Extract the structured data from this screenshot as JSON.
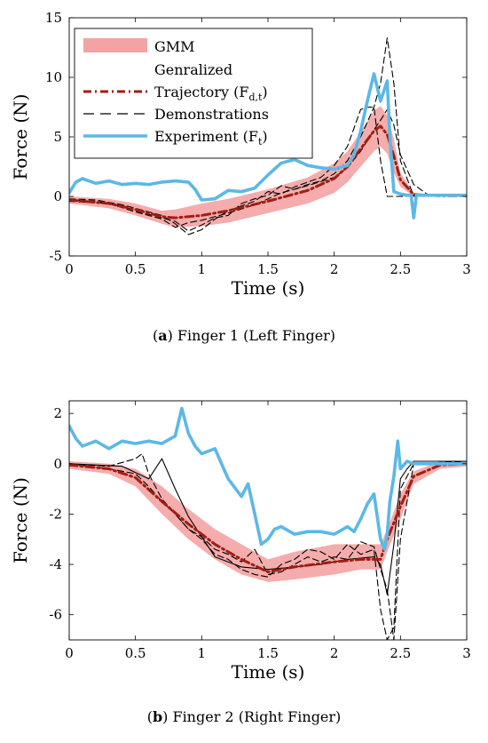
{
  "figure": {
    "captions": [
      {
        "label": "(",
        "letter": "a",
        "close": ")",
        "text": " Finger 1 (Left Finger)"
      },
      {
        "label": "(",
        "letter": "b",
        "close": ")",
        "text": " Finger 2 (Right Finger)"
      }
    ]
  },
  "colors": {
    "gmm": "#f4a3a3",
    "generalized": "#a01e12",
    "demonstrations": "#000000",
    "experiment": "#5cb8e6"
  },
  "chart_data": [
    {
      "type": "line",
      "title": "",
      "xlabel": "Time (s)",
      "ylabel": "Force (N)",
      "xlim": [
        0,
        3
      ],
      "ylim": [
        -5,
        15
      ],
      "xticks": [
        0,
        0.5,
        1,
        1.5,
        2,
        2.5,
        3
      ],
      "xtick_labels": [
        "0",
        "0.5",
        "1",
        "1.5",
        "2",
        "2.5",
        "3"
      ],
      "yticks": [
        -5,
        0,
        5,
        10,
        15
      ],
      "ytick_labels": [
        "-5",
        "0",
        "5",
        "10",
        "15"
      ],
      "grid": false,
      "legend": {
        "placement": "top-left",
        "entries": [
          {
            "series": "gmm",
            "lines": [
              "GMM"
            ]
          },
          {
            "series": "generalized",
            "lines": [
              "Genralized",
              "Trajectory (F",
              "d,t",
              ")"
            ]
          },
          {
            "series": "demonstrations",
            "lines": [
              "Demonstrations"
            ]
          },
          {
            "series": "experiment",
            "lines": [
              "Experiment (F",
              "t",
              ")"
            ]
          }
        ]
      },
      "series": [
        {
          "id": "gmm",
          "name": "GMM",
          "style": "band",
          "x": [
            0,
            0.3,
            0.5,
            0.7,
            0.8,
            1.0,
            1.2,
            1.5,
            1.8,
            2.0,
            2.1,
            2.2,
            2.3,
            2.35,
            2.4,
            2.45,
            2.5,
            2.6,
            2.8,
            3.0
          ],
          "lower": [
            -0.6,
            -1.0,
            -1.6,
            -2.3,
            -2.6,
            -2.5,
            -2.2,
            -1.4,
            -0.6,
            0.3,
            1.2,
            2.5,
            3.8,
            4.2,
            3.6,
            2.0,
            0.8,
            0.0,
            0.0,
            0.0
          ],
          "upper": [
            0.0,
            -0.2,
            -0.6,
            -1.2,
            -1.1,
            -0.6,
            -0.2,
            0.6,
            1.6,
            2.8,
            3.8,
            5.4,
            7.2,
            7.6,
            6.8,
            4.8,
            2.0,
            0.3,
            0.1,
            0.1
          ]
        },
        {
          "id": "generalized",
          "name": "Genralized Trajectory (Fd,t)",
          "style": "dashdot",
          "x": [
            0,
            0.3,
            0.5,
            0.7,
            0.8,
            1.0,
            1.2,
            1.5,
            1.8,
            2.0,
            2.1,
            2.2,
            2.3,
            2.35,
            2.4,
            2.45,
            2.5,
            2.6,
            2.8,
            3.0
          ],
          "y": [
            -0.3,
            -0.6,
            -1.1,
            -1.7,
            -1.8,
            -1.6,
            -1.2,
            -0.4,
            0.5,
            1.5,
            2.5,
            4.0,
            5.5,
            5.9,
            5.2,
            3.4,
            1.4,
            0.15,
            0.05,
            0.05
          ]
        },
        {
          "id": "demo1",
          "name": "Demonstrations",
          "style": "dashed",
          "x": [
            0,
            0.2,
            0.4,
            0.5,
            0.6,
            0.7,
            0.8,
            0.9,
            1.0,
            1.1,
            1.2,
            1.3,
            1.4,
            1.5,
            1.6,
            1.7,
            1.8,
            1.9,
            2.0,
            2.1,
            2.2,
            2.3,
            2.35,
            2.4,
            2.45,
            2.5,
            2.6,
            2.7,
            2.8,
            3.0
          ],
          "y": [
            -0.3,
            -0.4,
            -0.8,
            -1.2,
            -1.5,
            -1.8,
            -2.1,
            -2.9,
            -2.4,
            -1.8,
            -1.6,
            -0.6,
            -0.2,
            0.1,
            0.9,
            0.6,
            1.0,
            1.3,
            1.9,
            3.0,
            5.0,
            7.5,
            9.5,
            13.3,
            9.5,
            3.0,
            0.0,
            0.0,
            0.0,
            0.0
          ]
        },
        {
          "id": "demo2",
          "name": "",
          "style": "dashed",
          "x": [
            0,
            0.2,
            0.4,
            0.5,
            0.6,
            0.7,
            0.8,
            0.9,
            1.0,
            1.1,
            1.2,
            1.3,
            1.4,
            1.5,
            1.6,
            1.7,
            1.8,
            1.9,
            2.0,
            2.1,
            2.2,
            2.25,
            2.3,
            2.35,
            2.4,
            2.5,
            2.6,
            3.0
          ],
          "y": [
            -0.2,
            -0.3,
            -0.7,
            -1.0,
            -1.3,
            -1.6,
            -2.3,
            -3.2,
            -2.8,
            -1.9,
            -1.2,
            -0.8,
            -0.4,
            0.4,
            0.2,
            0.8,
            1.2,
            1.6,
            2.6,
            4.2,
            7.3,
            7.5,
            7.5,
            3.0,
            0.0,
            0.0,
            0.0,
            0.0
          ]
        },
        {
          "id": "demo3",
          "name": "",
          "style": "dashed",
          "x": [
            0,
            0.3,
            0.5,
            0.7,
            0.8,
            0.9,
            1.0,
            1.2,
            1.4,
            1.6,
            1.8,
            2.0,
            2.1,
            2.2,
            2.3,
            2.35,
            2.4,
            2.45,
            2.5,
            2.6,
            2.7,
            2.8,
            3.0
          ],
          "y": [
            -0.4,
            -0.6,
            -1.3,
            -1.9,
            -2.6,
            -2.2,
            -2.0,
            -1.4,
            -0.7,
            0.3,
            0.9,
            1.6,
            2.4,
            3.8,
            5.6,
            6.4,
            7.3,
            6.0,
            3.5,
            1.0,
            0.2,
            0.0,
            0.0
          ]
        },
        {
          "id": "experiment",
          "name": "Experiment (Ft)",
          "style": "solid",
          "x": [
            0,
            0.05,
            0.1,
            0.2,
            0.3,
            0.4,
            0.5,
            0.6,
            0.7,
            0.8,
            0.9,
            0.95,
            1.0,
            1.1,
            1.2,
            1.3,
            1.4,
            1.5,
            1.6,
            1.7,
            1.8,
            1.9,
            2.0,
            2.1,
            2.15,
            2.2,
            2.25,
            2.3,
            2.35,
            2.4,
            2.42,
            2.45,
            2.5,
            2.55,
            2.58,
            2.6,
            2.62,
            2.7,
            3.0
          ],
          "y": [
            0.3,
            1.2,
            1.5,
            1.1,
            1.3,
            1.0,
            1.1,
            1.0,
            1.2,
            1.3,
            1.2,
            0.6,
            -0.3,
            -0.2,
            0.5,
            0.4,
            0.7,
            1.8,
            2.8,
            3.1,
            2.6,
            2.4,
            2.3,
            2.6,
            3.5,
            5.5,
            8.0,
            10.3,
            8.0,
            9.7,
            5.0,
            0.4,
            0.2,
            0.1,
            0.1,
            -1.8,
            0.1,
            0.1,
            0.1
          ]
        }
      ]
    },
    {
      "type": "line",
      "title": "",
      "xlabel": "Time (s)",
      "ylabel": "Force (N)",
      "xlim": [
        0,
        3
      ],
      "ylim": [
        -7,
        2.5
      ],
      "xticks": [
        0,
        0.5,
        1,
        1.5,
        2,
        2.5,
        3
      ],
      "xtick_labels": [
        "0",
        "0.5",
        "1",
        "1.5",
        "2",
        "2.5",
        "3"
      ],
      "yticks": [
        -6,
        -4,
        -2,
        0,
        2
      ],
      "ytick_labels": [
        "-6",
        "-4",
        "-2",
        "0",
        "2"
      ],
      "grid": false,
      "series": [
        {
          "id": "gmm",
          "name": "GMM",
          "style": "band",
          "x": [
            0,
            0.3,
            0.5,
            0.7,
            0.9,
            1.1,
            1.3,
            1.5,
            1.7,
            2.0,
            2.2,
            2.35,
            2.4,
            2.5,
            2.6,
            2.8,
            3.0
          ],
          "lower": [
            -0.2,
            -0.4,
            -0.9,
            -2.0,
            -3.0,
            -3.8,
            -4.4,
            -4.7,
            -4.6,
            -4.4,
            -4.2,
            -4.2,
            -3.5,
            -2.2,
            -0.8,
            -0.2,
            -0.1
          ],
          "upper": [
            0.1,
            0.0,
            -0.2,
            -0.9,
            -1.8,
            -2.6,
            -3.2,
            -3.8,
            -3.5,
            -3.2,
            -3.2,
            -3.2,
            -2.6,
            -1.2,
            -0.3,
            0.1,
            0.1
          ]
        },
        {
          "id": "generalized",
          "name": "Genralized Trajectory (Fd,t)",
          "style": "dashdot",
          "x": [
            0,
            0.3,
            0.5,
            0.7,
            0.9,
            1.1,
            1.3,
            1.5,
            1.7,
            2.0,
            2.2,
            2.35,
            2.4,
            2.5,
            2.6,
            2.8,
            3.0
          ],
          "y": [
            -0.05,
            -0.2,
            -0.55,
            -1.5,
            -2.4,
            -3.2,
            -3.8,
            -4.3,
            -4.1,
            -3.9,
            -3.8,
            -3.8,
            -3.0,
            -1.7,
            -0.5,
            -0.05,
            0.0
          ]
        },
        {
          "id": "demo1",
          "name": "",
          "style": "dashed",
          "x": [
            0,
            0.3,
            0.5,
            0.55,
            0.6,
            0.7,
            0.8,
            0.9,
            1.0,
            1.1,
            1.2,
            1.3,
            1.4,
            1.5,
            1.6,
            1.7,
            1.8,
            1.9,
            2.0,
            2.1,
            2.2,
            2.3,
            2.35,
            2.4,
            2.45,
            2.5,
            2.6,
            3.0
          ],
          "y": [
            0.0,
            -0.1,
            0.2,
            0.4,
            -0.4,
            -1.4,
            -2.0,
            -2.6,
            -3.0,
            -3.6,
            -3.8,
            -4.2,
            -4.4,
            -4.5,
            -4.0,
            -3.8,
            -3.4,
            -3.5,
            -3.8,
            -3.2,
            -3.6,
            -3.4,
            -5.8,
            -7.0,
            -6.5,
            -1.0,
            0.0,
            0.1
          ]
        },
        {
          "id": "demo2",
          "name": "",
          "style": "dashed",
          "x": [
            0,
            0.3,
            0.5,
            0.6,
            0.7,
            0.8,
            0.9,
            1.0,
            1.1,
            1.2,
            1.3,
            1.4,
            1.5,
            1.6,
            1.7,
            1.8,
            1.9,
            2.0,
            2.1,
            2.2,
            2.3,
            2.35,
            2.4,
            2.45,
            2.5,
            2.6,
            3.0
          ],
          "y": [
            0.0,
            -0.2,
            -0.4,
            -0.9,
            -1.5,
            -2.0,
            -2.6,
            -2.9,
            -3.4,
            -3.6,
            -3.9,
            -3.4,
            -4.4,
            -4.3,
            -4.0,
            -3.7,
            -3.9,
            -3.7,
            -3.8,
            -3.1,
            -3.3,
            -4.2,
            -5.0,
            -7.0,
            -3.0,
            0.0,
            0.0
          ]
        },
        {
          "id": "demo3",
          "name": "",
          "style": "solid-thin",
          "x": [
            0,
            0.4,
            0.6,
            0.7,
            0.8,
            0.9,
            1.0,
            1.1,
            1.3,
            1.5,
            1.7,
            1.9,
            2.1,
            2.3,
            2.35,
            2.4,
            2.45,
            2.5,
            2.55,
            2.6,
            3.0
          ],
          "y": [
            0.0,
            -0.1,
            -0.6,
            0.2,
            -1.0,
            -2.1,
            -2.9,
            -3.7,
            -4.1,
            -4.2,
            -4.1,
            -4.0,
            -3.8,
            -3.7,
            -4.0,
            -5.2,
            -3.2,
            -0.6,
            -0.2,
            0.1,
            0.1
          ]
        },
        {
          "id": "experiment",
          "name": "Experiment (Ft)",
          "style": "solid",
          "x": [
            0,
            0.05,
            0.1,
            0.2,
            0.3,
            0.4,
            0.5,
            0.6,
            0.7,
            0.8,
            0.85,
            0.9,
            0.95,
            1.0,
            1.1,
            1.15,
            1.2,
            1.3,
            1.35,
            1.4,
            1.45,
            1.5,
            1.55,
            1.6,
            1.7,
            1.8,
            1.9,
            2.0,
            2.1,
            2.15,
            2.2,
            2.25,
            2.3,
            2.35,
            2.38,
            2.4,
            2.42,
            2.45,
            2.48,
            2.5,
            2.55,
            2.6,
            2.7,
            3.0
          ],
          "y": [
            1.5,
            1.0,
            0.7,
            0.9,
            0.6,
            0.9,
            0.8,
            0.9,
            0.8,
            1.1,
            2.2,
            1.2,
            0.7,
            0.4,
            0.6,
            0.0,
            -0.6,
            -1.3,
            -0.8,
            -2.0,
            -3.2,
            -3.0,
            -2.6,
            -2.5,
            -2.8,
            -2.7,
            -2.7,
            -2.8,
            -2.5,
            -2.7,
            -2.2,
            -1.6,
            -1.2,
            -3.0,
            -3.4,
            -2.8,
            -1.5,
            -0.5,
            0.9,
            -0.2,
            0.1,
            0.0,
            0.0,
            0.0
          ]
        }
      ]
    }
  ]
}
